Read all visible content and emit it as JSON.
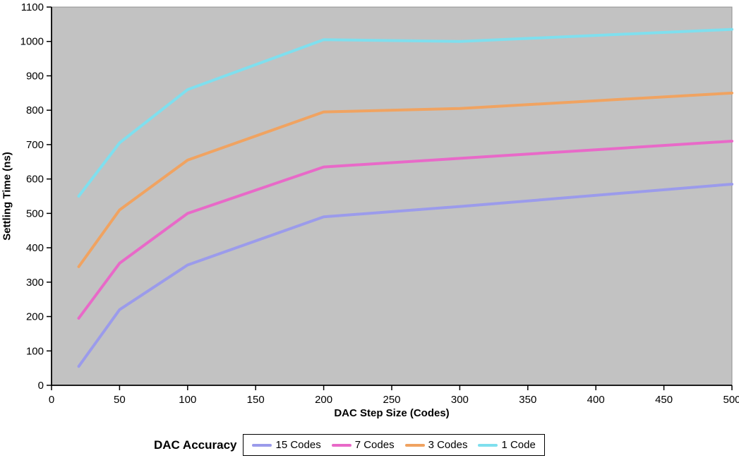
{
  "chart_data": {
    "type": "line",
    "title": "",
    "xlabel": "DAC Step Size (Codes)",
    "ylabel": "Settling Time (ns)",
    "xlim": [
      0,
      500
    ],
    "ylim": [
      0,
      1100
    ],
    "x_ticks": [
      0,
      50,
      100,
      150,
      200,
      250,
      300,
      350,
      400,
      450,
      500
    ],
    "y_ticks": [
      0,
      100,
      200,
      300,
      400,
      500,
      600,
      700,
      800,
      900,
      1000,
      1100
    ],
    "grid": false,
    "plot_bg": "#c2c2c2",
    "legend_position": "bottom",
    "legend_title": "DAC Accuracy",
    "x": [
      20,
      50,
      100,
      200,
      300,
      500
    ],
    "series": [
      {
        "name": "15 Codes",
        "color": "#9b9beb",
        "values": [
          55,
          220,
          350,
          490,
          520,
          585
        ]
      },
      {
        "name": "7 Codes",
        "color": "#e869c8",
        "values": [
          195,
          355,
          500,
          635,
          660,
          710
        ]
      },
      {
        "name": "3 Codes",
        "color": "#f0a361",
        "values": [
          345,
          510,
          655,
          795,
          805,
          850
        ]
      },
      {
        "name": "1 Code",
        "color": "#7fdfee",
        "values": [
          550,
          705,
          860,
          1005,
          1000,
          1035
        ]
      }
    ]
  }
}
